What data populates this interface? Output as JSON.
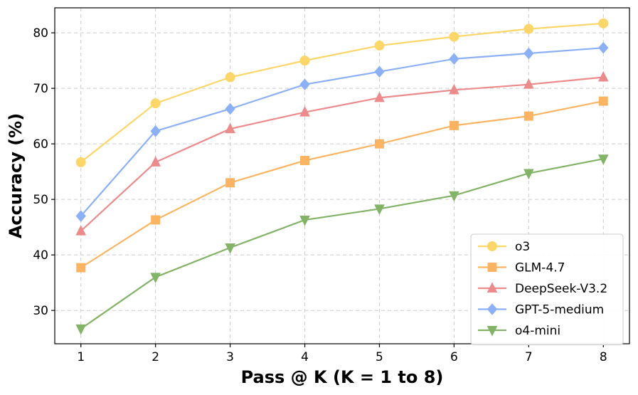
{
  "chart_data": {
    "type": "line",
    "title": "",
    "xlabel": "Pass @ K (K = 1 to 8)",
    "ylabel": "Accuracy (%)",
    "x": [
      1,
      2,
      3,
      4,
      5,
      6,
      7,
      8
    ],
    "xticks": [
      "1",
      "2",
      "3",
      "4",
      "5",
      "6",
      "7",
      "8"
    ],
    "yticks": [
      "30",
      "40",
      "50",
      "60",
      "70",
      "80"
    ],
    "ylim": [
      24,
      84.5
    ],
    "xlim": [
      0.65,
      8.35
    ],
    "grid": true,
    "legend_position": "bottom-right",
    "series": [
      {
        "name": "o3",
        "color": "#fdd66a",
        "marker": "circle",
        "values": [
          56.7,
          67.3,
          72.0,
          75.0,
          77.7,
          79.3,
          80.7,
          81.7
        ]
      },
      {
        "name": "GLM-4.7",
        "color": "#fdb462",
        "marker": "square",
        "values": [
          37.7,
          46.3,
          53.0,
          57.0,
          60.0,
          63.3,
          65.0,
          67.7
        ]
      },
      {
        "name": "DeepSeek-V3.2",
        "color": "#ec8b8b",
        "marker": "triangle-up",
        "values": [
          44.3,
          56.7,
          62.7,
          65.7,
          68.3,
          69.7,
          70.7,
          72.0
        ]
      },
      {
        "name": "GPT-5-medium",
        "color": "#8cb0f5",
        "marker": "diamond",
        "values": [
          47.0,
          62.3,
          66.3,
          70.7,
          73.0,
          75.3,
          76.3,
          77.3
        ]
      },
      {
        "name": "o4-mini",
        "color": "#82b366",
        "marker": "triangle-down",
        "values": [
          26.7,
          36.0,
          41.3,
          46.3,
          48.3,
          50.7,
          54.7,
          57.3
        ]
      }
    ]
  }
}
